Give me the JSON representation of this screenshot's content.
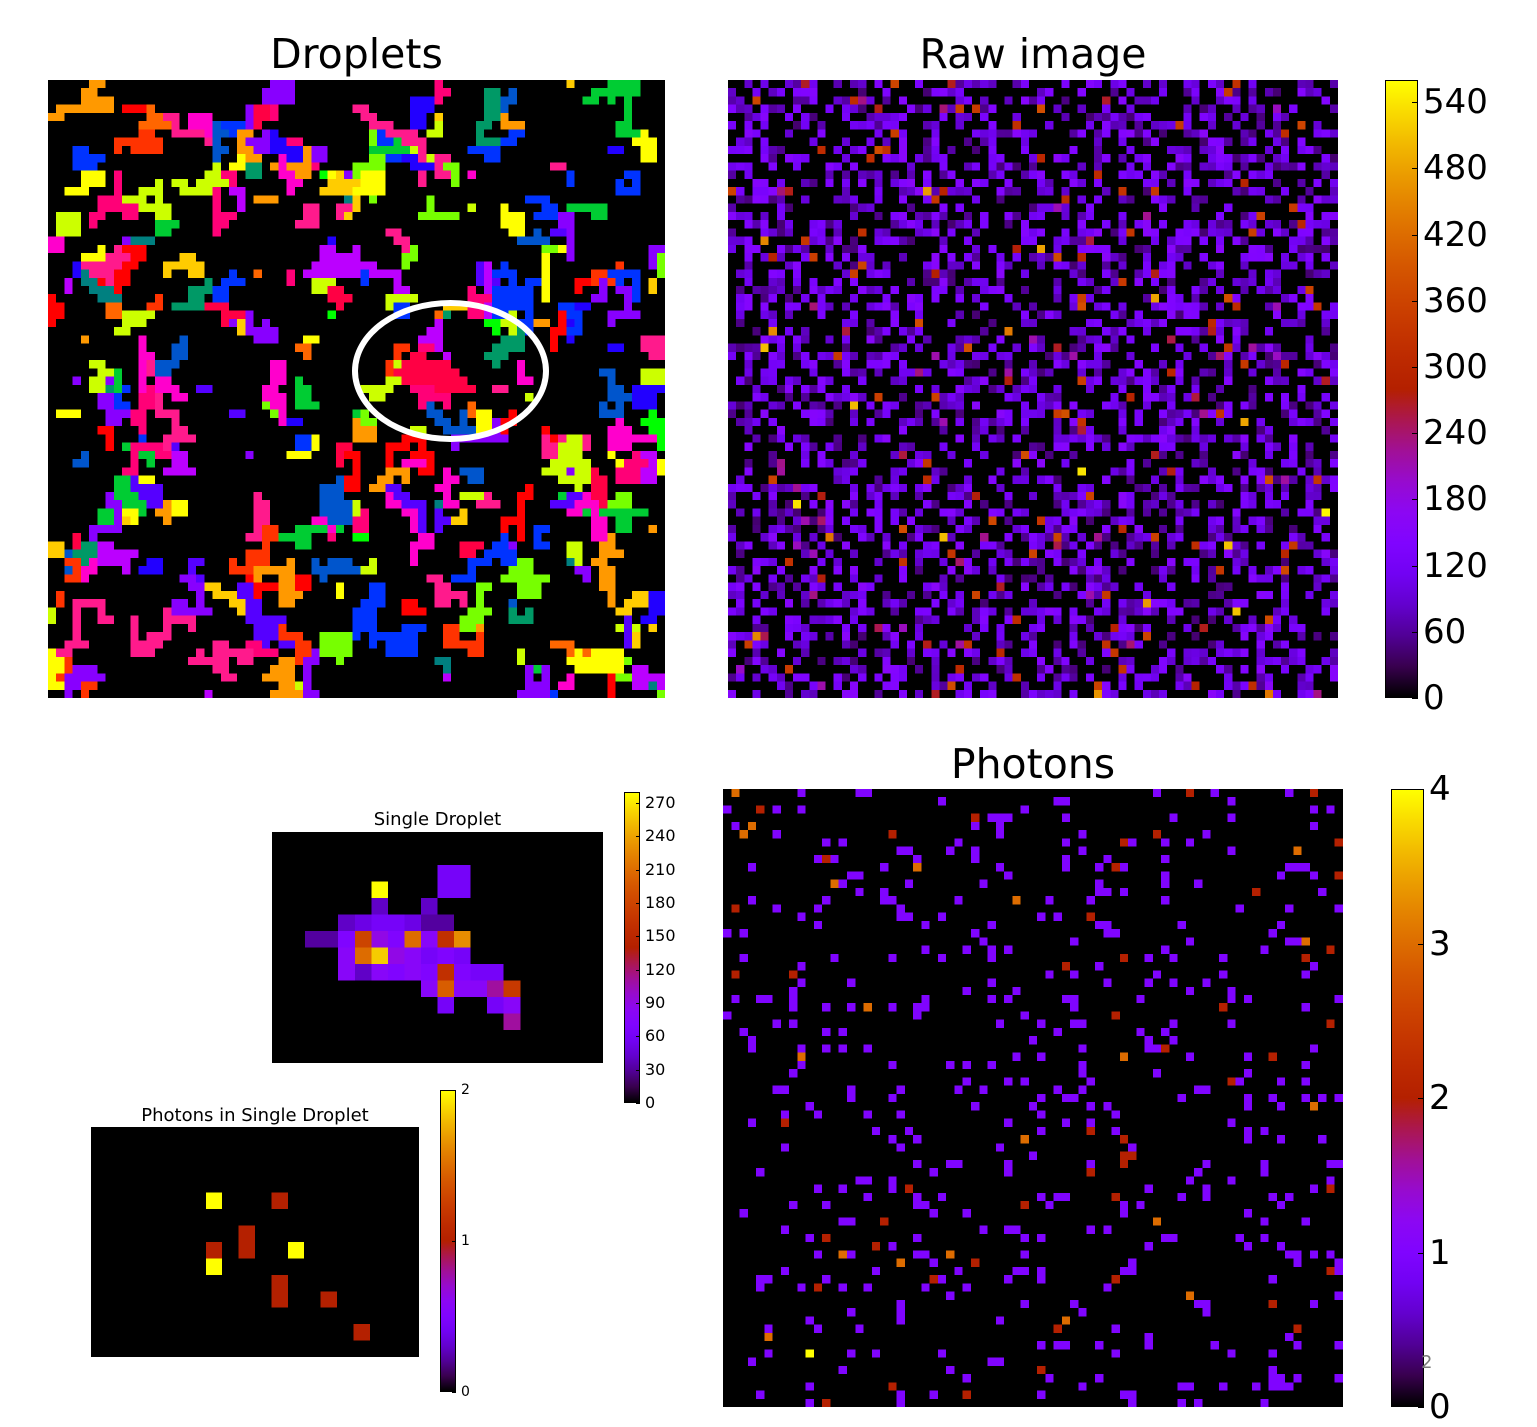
{
  "figure": {
    "stray_label": "2"
  },
  "chart_data": [
    {
      "id": "droplets",
      "type": "heatmap",
      "title": "Droplets",
      "grid_size": [
        75,
        75
      ],
      "colormap": "random-labels",
      "label_colors": [
        "#ff0000",
        "#ff3300",
        "#ff6600",
        "#ff9900",
        "#ffcc00",
        "#ffff00",
        "#ccff00",
        "#77ff00",
        "#00ff00",
        "#00cc33",
        "#009966",
        "#008080",
        "#0055cc",
        "#0033ff",
        "#2200ff",
        "#5500ff",
        "#8800ff",
        "#bb00ff",
        "#ff00cc",
        "#ff0077",
        "#ff0044",
        "#ff1a8c"
      ],
      "annotation": "highlighted single droplet (ellipse)",
      "grid": false,
      "colorbar": false
    },
    {
      "id": "raw-image",
      "type": "heatmap",
      "title": "Raw image",
      "grid_size": [
        75,
        75
      ],
      "colormap": "gnuplot",
      "value_range": [
        0,
        560
      ],
      "colorbar": {
        "ticks": [
          "0",
          "60",
          "120",
          "180",
          "240",
          "300",
          "360",
          "420",
          "480",
          "540"
        ],
        "values": [
          0,
          60,
          120,
          180,
          240,
          300,
          360,
          420,
          480,
          540
        ],
        "range": [
          0,
          560
        ]
      },
      "grid": false
    },
    {
      "id": "single-droplet",
      "type": "heatmap",
      "title": "Single Droplet",
      "grid_size": [
        14,
        20
      ],
      "colormap": "gnuplot",
      "value_range": [
        0,
        280
      ],
      "cells": [
        [
          3,
          6,
          280
        ],
        [
          2,
          10,
          60
        ],
        [
          2,
          11,
          60
        ],
        [
          3,
          10,
          60
        ],
        [
          3,
          11,
          60
        ],
        [
          4,
          6,
          40
        ],
        [
          4,
          9,
          40
        ],
        [
          5,
          4,
          40
        ],
        [
          5,
          5,
          50
        ],
        [
          5,
          6,
          60
        ],
        [
          5,
          7,
          60
        ],
        [
          5,
          8,
          50
        ],
        [
          5,
          9,
          30
        ],
        [
          5,
          10,
          30
        ],
        [
          6,
          2,
          30
        ],
        [
          6,
          3,
          30
        ],
        [
          6,
          4,
          70
        ],
        [
          6,
          5,
          180
        ],
        [
          6,
          6,
          90
        ],
        [
          6,
          7,
          70
        ],
        [
          6,
          8,
          210
        ],
        [
          6,
          9,
          80
        ],
        [
          6,
          10,
          160
        ],
        [
          6,
          11,
          230
        ],
        [
          7,
          4,
          80
        ],
        [
          7,
          5,
          210
        ],
        [
          7,
          6,
          260
        ],
        [
          7,
          7,
          90
        ],
        [
          7,
          8,
          80
        ],
        [
          7,
          9,
          60
        ],
        [
          7,
          10,
          70
        ],
        [
          7,
          11,
          60
        ],
        [
          8,
          4,
          80
        ],
        [
          8,
          5,
          40
        ],
        [
          8,
          6,
          80
        ],
        [
          8,
          7,
          70
        ],
        [
          8,
          8,
          80
        ],
        [
          8,
          9,
          70
        ],
        [
          8,
          10,
          160
        ],
        [
          8,
          11,
          70
        ],
        [
          8,
          12,
          60
        ],
        [
          8,
          13,
          60
        ],
        [
          9,
          9,
          80
        ],
        [
          9,
          10,
          200
        ],
        [
          9,
          11,
          80
        ],
        [
          9,
          12,
          80
        ],
        [
          9,
          13,
          110
        ],
        [
          9,
          14,
          170
        ],
        [
          10,
          10,
          60
        ],
        [
          10,
          13,
          60
        ],
        [
          10,
          14,
          80
        ],
        [
          11,
          14,
          110
        ]
      ],
      "colorbar": {
        "ticks": [
          "0",
          "30",
          "60",
          "90",
          "120",
          "150",
          "180",
          "210",
          "240",
          "270"
        ],
        "values": [
          0,
          30,
          60,
          90,
          120,
          150,
          180,
          210,
          240,
          270
        ],
        "range": [
          0,
          280
        ]
      },
      "grid": false
    },
    {
      "id": "photons-single",
      "type": "heatmap",
      "title": "Photons in Single Droplet",
      "grid_size": [
        14,
        20
      ],
      "colormap": "gnuplot",
      "value_range": [
        0,
        2
      ],
      "cells": [
        [
          4,
          7,
          2
        ],
        [
          4,
          11,
          1
        ],
        [
          6,
          9,
          1
        ],
        [
          7,
          9,
          1
        ],
        [
          7,
          7,
          1
        ],
        [
          7,
          12,
          2
        ],
        [
          8,
          7,
          2
        ],
        [
          9,
          11,
          1
        ],
        [
          10,
          11,
          1
        ],
        [
          10,
          14,
          1
        ],
        [
          12,
          16,
          1
        ]
      ],
      "colorbar": {
        "ticks": [
          "0",
          "1",
          "2"
        ],
        "values": [
          0,
          1,
          2
        ],
        "range": [
          0,
          2
        ]
      },
      "grid": false
    },
    {
      "id": "photons",
      "type": "heatmap",
      "title": "Photons",
      "grid_size": [
        75,
        75
      ],
      "colormap": "gnuplot",
      "value_range": [
        0,
        4
      ],
      "colorbar": {
        "ticks": [
          "0",
          "1",
          "2",
          "3",
          "4"
        ],
        "values": [
          0,
          1,
          2,
          3,
          4
        ],
        "range": [
          0,
          4
        ]
      },
      "grid": false
    }
  ]
}
